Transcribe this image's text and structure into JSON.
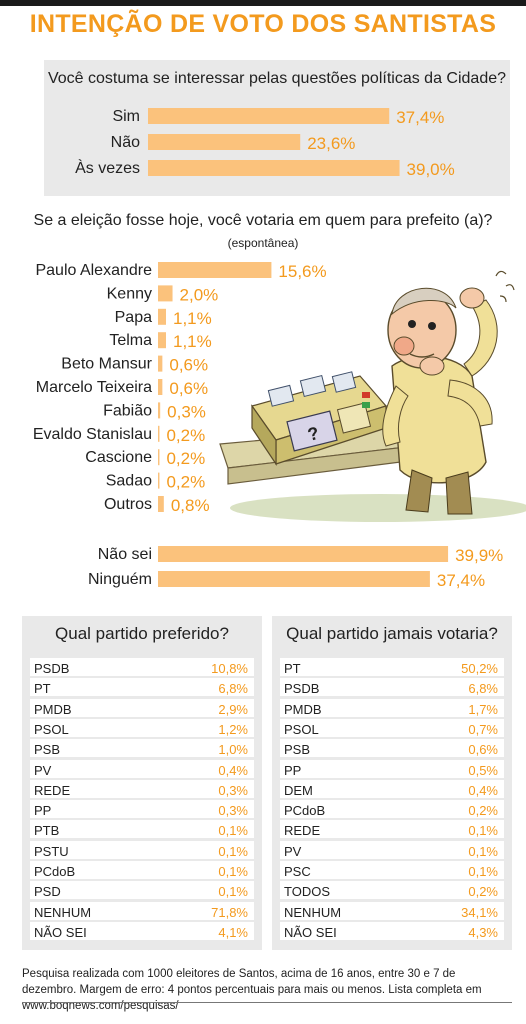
{
  "title": "INTENÇÃO DE VOTO DOS SANTISTAS",
  "chart_data": [
    {
      "type": "bar",
      "title": "Você costuma se interessar pelas questões políticas da Cidade?",
      "categories": [
        "Sim",
        "Não",
        "Às vezes"
      ],
      "values": [
        37.4,
        23.6,
        39.0
      ],
      "value_labels": [
        "37,4%",
        "23,6%",
        "39,0%"
      ]
    },
    {
      "type": "bar",
      "title": "Se a eleição fosse hoje, você votaria em quem para prefeito (a)?",
      "subtitle": "(espontânea)",
      "categories": [
        "Paulo Alexandre",
        "Kenny",
        "Papa",
        "Telma",
        "Beto Mansur",
        "Marcelo Teixeira",
        "Fabião",
        "Evaldo Stanislau",
        "Cascione",
        "Sadao",
        "Outros",
        "Não sei",
        "Ninguém"
      ],
      "values": [
        15.6,
        2.0,
        1.1,
        1.1,
        0.6,
        0.6,
        0.3,
        0.2,
        0.2,
        0.2,
        0.8,
        39.9,
        37.4
      ],
      "value_labels": [
        "15,6%",
        "2,0%",
        "1,1%",
        "1,1%",
        "0,6%",
        "0,6%",
        "0,3%",
        "0,2%",
        "0,2%",
        "0,2%",
        "0,8%",
        "39,9%",
        "37,4%"
      ]
    },
    {
      "type": "table",
      "title": "Qual partido preferido?",
      "rows": [
        {
          "party": "PSDB",
          "value": "10,8%"
        },
        {
          "party": "PT",
          "value": "6,8%"
        },
        {
          "party": "PMDB",
          "value": "2,9%"
        },
        {
          "party": "PSOL",
          "value": "1,2%"
        },
        {
          "party": "PSB",
          "value": "1,0%"
        },
        {
          "party": "PV",
          "value": "0,4%"
        },
        {
          "party": "REDE",
          "value": "0,3%"
        },
        {
          "party": "PP",
          "value": "0,3%"
        },
        {
          "party": "PTB",
          "value": "0,1%"
        },
        {
          "party": "PSTU",
          "value": "0,1%"
        },
        {
          "party": "PCdoB",
          "value": "0,1%"
        },
        {
          "party": "PSD",
          "value": "0,1%"
        },
        {
          "party": "NENHUM",
          "value": "71,8%"
        },
        {
          "party": "NÃO SEI",
          "value": "4,1%"
        }
      ]
    },
    {
      "type": "table",
      "title": "Qual partido jamais votaria?",
      "rows": [
        {
          "party": "PT",
          "value": "50,2%"
        },
        {
          "party": "PSDB",
          "value": "6,8%"
        },
        {
          "party": "PMDB",
          "value": "1,7%"
        },
        {
          "party": "PSOL",
          "value": "0,7%"
        },
        {
          "party": "PSB",
          "value": "0,6%"
        },
        {
          "party": "PP",
          "value": "0,5%"
        },
        {
          "party": "DEM",
          "value": "0,4%"
        },
        {
          "party": "PCdoB",
          "value": "0,2%"
        },
        {
          "party": "REDE",
          "value": "0,1%"
        },
        {
          "party": "PV",
          "value": "0,1%"
        },
        {
          "party": "PSC",
          "value": "0,1%"
        },
        {
          "party": "TODOS",
          "value": "0,2%"
        },
        {
          "party": "NENHUM",
          "value": "34,1%"
        },
        {
          "party": "NÃO SEI",
          "value": "4,3%"
        }
      ]
    }
  ],
  "footer": "Pesquisa realizada com 1000 eleitores de Santos, acima de 16 anos, entre 30 e 7 de dezembro.  Margem de erro: 4 pontos percentuais para mais ou menos. Lista completa em www.boqnews.com/pesquisas/",
  "colors": {
    "accent": "#f39a1e",
    "bar": "#fbc27c",
    "panel": "#e9e9e9"
  },
  "illustration": "cartoon of a confused man scratching his head beside an electronic voting machine"
}
